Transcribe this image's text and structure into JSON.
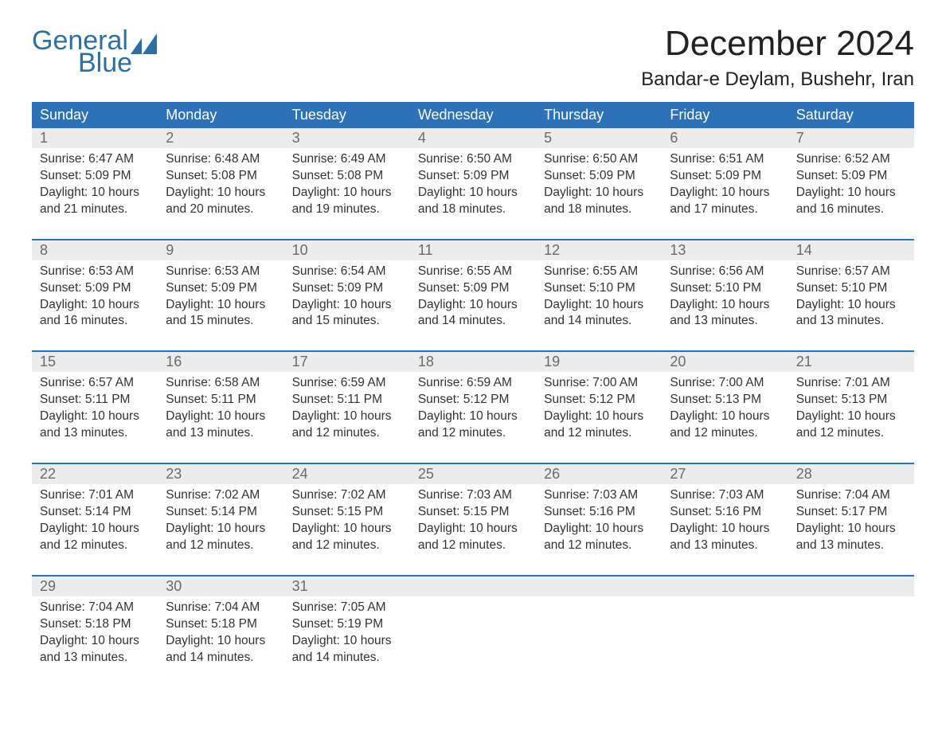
{
  "brand": {
    "line1": "General",
    "line2": "Blue",
    "color": "#2b6fa3"
  },
  "header": {
    "month_title": "December 2024",
    "location": "Bandar-e Deylam, Bushehr, Iran"
  },
  "colors": {
    "header_band": "#2b72b8",
    "header_text": "#ffffff",
    "daynum_band": "#ececec",
    "daynum_text": "#6a6a6a",
    "body_text": "#333333",
    "rule": "#2b72b8",
    "background": "#ffffff"
  },
  "typography": {
    "month_title_pt": 44,
    "location_pt": 24,
    "dow_pt": 18,
    "daynum_pt": 18,
    "body_pt": 15.5,
    "family": "Arial"
  },
  "days_of_week": [
    "Sunday",
    "Monday",
    "Tuesday",
    "Wednesday",
    "Thursday",
    "Friday",
    "Saturday"
  ],
  "weeks": [
    [
      {
        "n": "1",
        "sunrise": "Sunrise: 6:47 AM",
        "sunset": "Sunset: 5:09 PM",
        "d1": "Daylight: 10 hours",
        "d2": "and 21 minutes."
      },
      {
        "n": "2",
        "sunrise": "Sunrise: 6:48 AM",
        "sunset": "Sunset: 5:08 PM",
        "d1": "Daylight: 10 hours",
        "d2": "and 20 minutes."
      },
      {
        "n": "3",
        "sunrise": "Sunrise: 6:49 AM",
        "sunset": "Sunset: 5:08 PM",
        "d1": "Daylight: 10 hours",
        "d2": "and 19 minutes."
      },
      {
        "n": "4",
        "sunrise": "Sunrise: 6:50 AM",
        "sunset": "Sunset: 5:09 PM",
        "d1": "Daylight: 10 hours",
        "d2": "and 18 minutes."
      },
      {
        "n": "5",
        "sunrise": "Sunrise: 6:50 AM",
        "sunset": "Sunset: 5:09 PM",
        "d1": "Daylight: 10 hours",
        "d2": "and 18 minutes."
      },
      {
        "n": "6",
        "sunrise": "Sunrise: 6:51 AM",
        "sunset": "Sunset: 5:09 PM",
        "d1": "Daylight: 10 hours",
        "d2": "and 17 minutes."
      },
      {
        "n": "7",
        "sunrise": "Sunrise: 6:52 AM",
        "sunset": "Sunset: 5:09 PM",
        "d1": "Daylight: 10 hours",
        "d2": "and 16 minutes."
      }
    ],
    [
      {
        "n": "8",
        "sunrise": "Sunrise: 6:53 AM",
        "sunset": "Sunset: 5:09 PM",
        "d1": "Daylight: 10 hours",
        "d2": "and 16 minutes."
      },
      {
        "n": "9",
        "sunrise": "Sunrise: 6:53 AM",
        "sunset": "Sunset: 5:09 PM",
        "d1": "Daylight: 10 hours",
        "d2": "and 15 minutes."
      },
      {
        "n": "10",
        "sunrise": "Sunrise: 6:54 AM",
        "sunset": "Sunset: 5:09 PM",
        "d1": "Daylight: 10 hours",
        "d2": "and 15 minutes."
      },
      {
        "n": "11",
        "sunrise": "Sunrise: 6:55 AM",
        "sunset": "Sunset: 5:09 PM",
        "d1": "Daylight: 10 hours",
        "d2": "and 14 minutes."
      },
      {
        "n": "12",
        "sunrise": "Sunrise: 6:55 AM",
        "sunset": "Sunset: 5:10 PM",
        "d1": "Daylight: 10 hours",
        "d2": "and 14 minutes."
      },
      {
        "n": "13",
        "sunrise": "Sunrise: 6:56 AM",
        "sunset": "Sunset: 5:10 PM",
        "d1": "Daylight: 10 hours",
        "d2": "and 13 minutes."
      },
      {
        "n": "14",
        "sunrise": "Sunrise: 6:57 AM",
        "sunset": "Sunset: 5:10 PM",
        "d1": "Daylight: 10 hours",
        "d2": "and 13 minutes."
      }
    ],
    [
      {
        "n": "15",
        "sunrise": "Sunrise: 6:57 AM",
        "sunset": "Sunset: 5:11 PM",
        "d1": "Daylight: 10 hours",
        "d2": "and 13 minutes."
      },
      {
        "n": "16",
        "sunrise": "Sunrise: 6:58 AM",
        "sunset": "Sunset: 5:11 PM",
        "d1": "Daylight: 10 hours",
        "d2": "and 13 minutes."
      },
      {
        "n": "17",
        "sunrise": "Sunrise: 6:59 AM",
        "sunset": "Sunset: 5:11 PM",
        "d1": "Daylight: 10 hours",
        "d2": "and 12 minutes."
      },
      {
        "n": "18",
        "sunrise": "Sunrise: 6:59 AM",
        "sunset": "Sunset: 5:12 PM",
        "d1": "Daylight: 10 hours",
        "d2": "and 12 minutes."
      },
      {
        "n": "19",
        "sunrise": "Sunrise: 7:00 AM",
        "sunset": "Sunset: 5:12 PM",
        "d1": "Daylight: 10 hours",
        "d2": "and 12 minutes."
      },
      {
        "n": "20",
        "sunrise": "Sunrise: 7:00 AM",
        "sunset": "Sunset: 5:13 PM",
        "d1": "Daylight: 10 hours",
        "d2": "and 12 minutes."
      },
      {
        "n": "21",
        "sunrise": "Sunrise: 7:01 AM",
        "sunset": "Sunset: 5:13 PM",
        "d1": "Daylight: 10 hours",
        "d2": "and 12 minutes."
      }
    ],
    [
      {
        "n": "22",
        "sunrise": "Sunrise: 7:01 AM",
        "sunset": "Sunset: 5:14 PM",
        "d1": "Daylight: 10 hours",
        "d2": "and 12 minutes."
      },
      {
        "n": "23",
        "sunrise": "Sunrise: 7:02 AM",
        "sunset": "Sunset: 5:14 PM",
        "d1": "Daylight: 10 hours",
        "d2": "and 12 minutes."
      },
      {
        "n": "24",
        "sunrise": "Sunrise: 7:02 AM",
        "sunset": "Sunset: 5:15 PM",
        "d1": "Daylight: 10 hours",
        "d2": "and 12 minutes."
      },
      {
        "n": "25",
        "sunrise": "Sunrise: 7:03 AM",
        "sunset": "Sunset: 5:15 PM",
        "d1": "Daylight: 10 hours",
        "d2": "and 12 minutes."
      },
      {
        "n": "26",
        "sunrise": "Sunrise: 7:03 AM",
        "sunset": "Sunset: 5:16 PM",
        "d1": "Daylight: 10 hours",
        "d2": "and 12 minutes."
      },
      {
        "n": "27",
        "sunrise": "Sunrise: 7:03 AM",
        "sunset": "Sunset: 5:16 PM",
        "d1": "Daylight: 10 hours",
        "d2": "and 13 minutes."
      },
      {
        "n": "28",
        "sunrise": "Sunrise: 7:04 AM",
        "sunset": "Sunset: 5:17 PM",
        "d1": "Daylight: 10 hours",
        "d2": "and 13 minutes."
      }
    ],
    [
      {
        "n": "29",
        "sunrise": "Sunrise: 7:04 AM",
        "sunset": "Sunset: 5:18 PM",
        "d1": "Daylight: 10 hours",
        "d2": "and 13 minutes."
      },
      {
        "n": "30",
        "sunrise": "Sunrise: 7:04 AM",
        "sunset": "Sunset: 5:18 PM",
        "d1": "Daylight: 10 hours",
        "d2": "and 14 minutes."
      },
      {
        "n": "31",
        "sunrise": "Sunrise: 7:05 AM",
        "sunset": "Sunset: 5:19 PM",
        "d1": "Daylight: 10 hours",
        "d2": "and 14 minutes."
      },
      null,
      null,
      null,
      null
    ]
  ]
}
